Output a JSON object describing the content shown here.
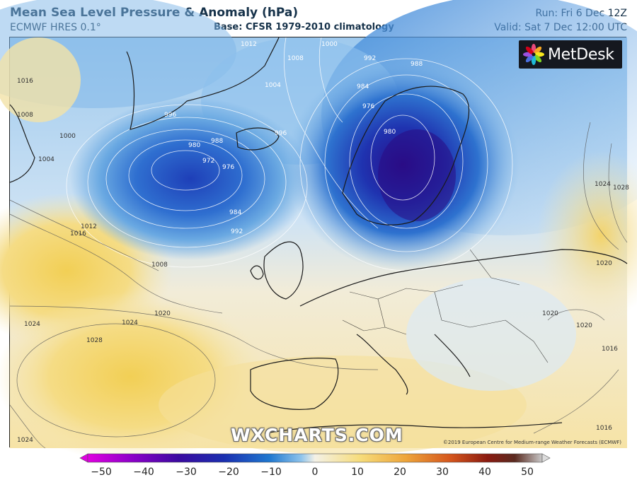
{
  "header": {
    "title": "Mean Sea Level Pressure & Anomaly (hPa)",
    "model": "ECMWF HRES 0.1°",
    "base": "Base: CFSR 1979-2010 climatology",
    "run": "Run: Fri 6 Dec 12Z",
    "valid": "Valid: Sat 7 Dec 12:00 UTC"
  },
  "logo": {
    "text": "MetDesk"
  },
  "watermark": "WXCHARTS.COM",
  "copyright": "©2019 European Centre for Medium-range Weather Forecasts (ECMWF)",
  "isobar_labels": [
    "1012",
    "1008",
    "1004",
    "1000",
    "996",
    "992",
    "988",
    "984",
    "980",
    "976",
    "972",
    "1016",
    "1020",
    "1024",
    "1028"
  ],
  "map_labels": {
    "l1012_greenland": "1012",
    "l1008_greenland": "1008",
    "l1004_north": "1004",
    "l1000_north": "1000",
    "l992_north": "992",
    "l988_north": "988",
    "l984_scand": "984",
    "l976_scand": "976",
    "l980_scand": "980",
    "l996_iceland": "996",
    "l996_east": "996",
    "l980_low": "980",
    "l988_low": "988",
    "l972_low": "972",
    "l976_low": "976",
    "l984_low": "984",
    "l992_low": "992",
    "l1016_nw": "1016",
    "l1008_west": "1008",
    "l1000_west": "1000",
    "l1004_west": "1004",
    "l1012_atl": "1012",
    "l1016_atl": "1016",
    "l1008_atl": "1008",
    "l1020_atl": "1020",
    "l1024_w": "1024",
    "l1024_mid": "1024",
    "l1028_azores": "1028",
    "l1024_sw": "1024",
    "l1024_east": "1024",
    "l1028_east": "1028",
    "l1020_east": "1020",
    "l1020_balkan": "1020",
    "l1020_turkey": "1020",
    "l1016_turkey": "1016",
    "l1016_se": "1016"
  },
  "legend": {
    "ticks": [
      "−50",
      "−40",
      "−30",
      "−20",
      "−10",
      "0",
      "10",
      "20",
      "30",
      "40",
      "50"
    ],
    "colors": [
      "#e000e0",
      "#8a00c8",
      "#3a0aa0",
      "#1a2fb0",
      "#1f78d0",
      "#8fc4ec",
      "#f4f1e6",
      "#f6dc7a",
      "#eea53a",
      "#d4541c",
      "#8a1a10",
      "#5a2a20",
      "#c9c9c9"
    ]
  }
}
